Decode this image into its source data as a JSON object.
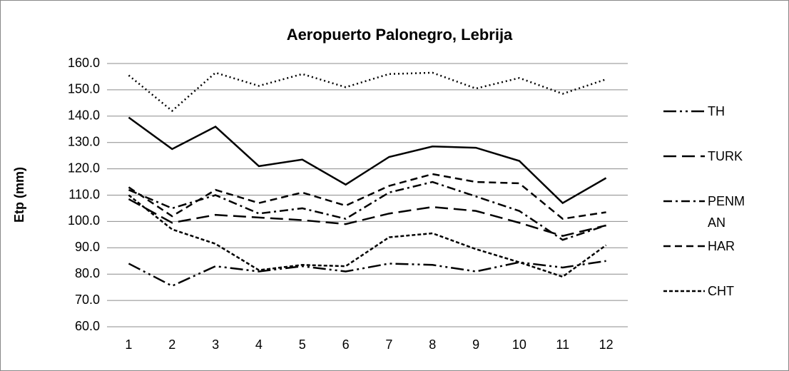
{
  "chart_data": {
    "type": "line",
    "title": "Aeropuerto Palonegro, Lebrija",
    "y_label": "Etp (mm)",
    "categories": [
      "1",
      "2",
      "3",
      "4",
      "5",
      "6",
      "7",
      "8",
      "9",
      "10",
      "11",
      "12"
    ],
    "ylim": [
      60,
      160
    ],
    "yticks": [
      {
        "value": 60,
        "label": "60.0"
      },
      {
        "value": 70,
        "label": "70.0"
      },
      {
        "value": 80,
        "label": "80.0"
      },
      {
        "value": 90,
        "label": "90.0"
      },
      {
        "value": 100,
        "label": "100.0"
      },
      {
        "value": 110,
        "label": "110.0"
      },
      {
        "value": 120,
        "label": "120.0"
      },
      {
        "value": 130,
        "label": "130.0"
      },
      {
        "value": 140,
        "label": "140.0"
      },
      {
        "value": 150,
        "label": "150.0"
      },
      {
        "value": 160,
        "label": "160.0"
      }
    ],
    "grid": true,
    "series": [
      {
        "name": "TH",
        "color": "#000000",
        "dash": "18,5,3,5,3,5",
        "values": [
          84,
          75.5,
          83,
          81,
          83,
          81,
          84,
          83.5,
          81,
          84.5,
          82.5,
          85
        ]
      },
      {
        "name": "TURK",
        "color": "#000000",
        "dash": "18,8",
        "values": [
          108.5,
          99.5,
          102.5,
          101.5,
          100.5,
          99,
          103,
          105.5,
          104,
          99.5,
          94.5,
          98.5
        ]
      },
      {
        "name": "PENMAN",
        "color": "#000000",
        "dash": "12,5,3,5",
        "values": [
          112,
          105,
          110,
          103,
          105,
          101,
          111,
          115,
          109.5,
          104,
          93,
          98.5
        ]
      },
      {
        "name": "HAR",
        "color": "#000000",
        "dash": "10,6",
        "values": [
          113,
          102,
          112,
          107,
          111,
          106,
          113.5,
          118,
          115,
          114.5,
          101,
          103.5
        ]
      },
      {
        "name": "CHT",
        "color": "#000000",
        "dash": "5,3",
        "values": [
          110,
          97,
          91.5,
          81.5,
          83.5,
          83,
          94,
          95.5,
          89.5,
          84.5,
          79,
          91
        ]
      },
      {
        "color": "#000000",
        "dash": "2,4",
        "values": [
          155.5,
          142,
          156.5,
          151.5,
          156,
          151,
          156,
          156.5,
          150.5,
          154.5,
          148.5,
          154
        ]
      },
      {
        "color": "#000000",
        "dash": "none",
        "values": [
          139.5,
          127.5,
          136,
          121,
          123.5,
          114,
          124.5,
          128.5,
          128,
          123,
          107,
          116.5
        ]
      }
    ]
  }
}
